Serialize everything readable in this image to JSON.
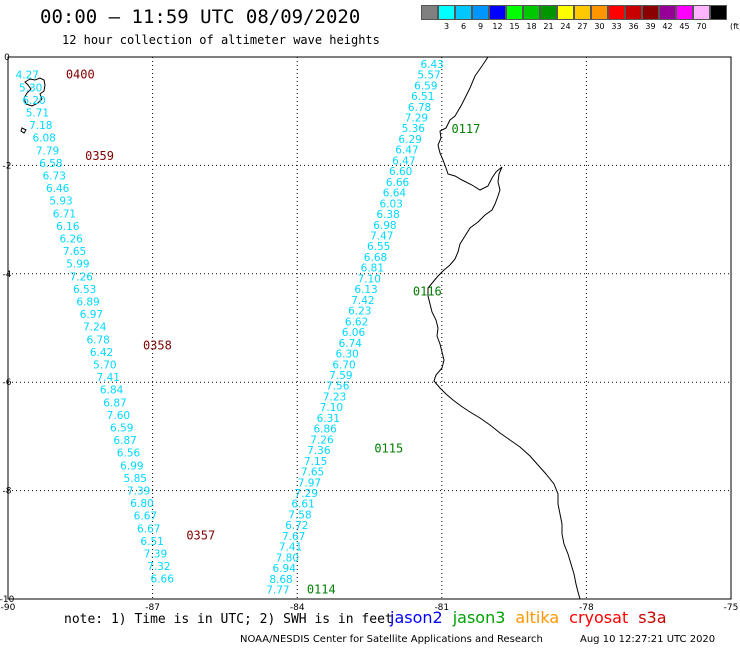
{
  "header": {
    "title": "00:00 – 11:59 UTC 08/09/2020",
    "subtitle": "12 hour collection of altimeter wave heights"
  },
  "legend": {
    "units": "(ft)",
    "items": [
      {
        "label": "",
        "color": "#808080"
      },
      {
        "label": "3",
        "color": "#00ffff"
      },
      {
        "label": "6",
        "color": "#00c8ff"
      },
      {
        "label": "9",
        "color": "#0096ff"
      },
      {
        "label": "12",
        "color": "#0000ff"
      },
      {
        "label": "15",
        "color": "#00ff00"
      },
      {
        "label": "18",
        "color": "#00c800"
      },
      {
        "label": "21",
        "color": "#009600"
      },
      {
        "label": "24",
        "color": "#ffff00"
      },
      {
        "label": "27",
        "color": "#ffc800"
      },
      {
        "label": "30",
        "color": "#ff9600"
      },
      {
        "label": "33",
        "color": "#ff0000"
      },
      {
        "label": "36",
        "color": "#c80000"
      },
      {
        "label": "39",
        "color": "#8b0000"
      },
      {
        "label": "42",
        "color": "#960096"
      },
      {
        "label": "45",
        "color": "#ff00ff"
      },
      {
        "label": "70",
        "color": "#ffb4ff"
      },
      {
        "label": "",
        "color": "#000000"
      }
    ]
  },
  "axes": {
    "x_ticks": [
      {
        "lon": -90,
        "label": "-90"
      },
      {
        "lon": -87,
        "label": "-87"
      },
      {
        "lon": -84,
        "label": "-84"
      },
      {
        "lon": -81,
        "label": "-81"
      },
      {
        "lon": -78,
        "label": "-78"
      },
      {
        "lon": -75,
        "label": "-75"
      }
    ],
    "y_ticks": [
      {
        "lat": 0,
        "label": "0"
      },
      {
        "lat": -2,
        "label": "-2"
      },
      {
        "lat": -4,
        "label": "-4"
      },
      {
        "lat": -6,
        "label": "-6"
      },
      {
        "lat": -8,
        "label": "-8"
      },
      {
        "lat": -10,
        "label": "-10"
      }
    ],
    "lon_range": [
      -90,
      -75
    ],
    "lat_range": [
      -10,
      0
    ]
  },
  "tracks": [
    {
      "satellite": "cryosat",
      "color": "#00d8ff",
      "start": {
        "lon": -89.6,
        "lat": -0.4
      },
      "end": {
        "lon": -86.8,
        "lat": -9.7
      },
      "values": [
        "4.27",
        "5.30",
        "6.20",
        "5.71",
        "7.18",
        "6.08",
        "7.79",
        "6.58",
        "6.73",
        "6.46",
        "5.93",
        "6.71",
        "6.16",
        "6.26",
        "7.65",
        "5.99",
        "7.26",
        "6.53",
        "6.89",
        "6.97",
        "7.24",
        "6.78",
        "6.42",
        "5.70",
        "7.41",
        "6.84",
        "6.87",
        "7.60",
        "6.59",
        "6.87",
        "6.56",
        "6.99",
        "5.85",
        "7.39",
        "6.80",
        "6.67",
        "6.67",
        "6.51",
        "7.39",
        "7.32",
        "6.66"
      ],
      "time_labels": [
        {
          "label": "0400",
          "lon": -88.8,
          "lat": -0.4
        },
        {
          "label": "0359",
          "lon": -88.4,
          "lat": -1.9
        },
        {
          "label": "0358",
          "lon": -87.2,
          "lat": -5.4
        },
        {
          "label": "0357",
          "lon": -86.3,
          "lat": -8.9
        }
      ]
    },
    {
      "satellite": "jason3",
      "color": "#00d8ff",
      "start": {
        "lon": -81.2,
        "lat": -0.2
      },
      "end": {
        "lon": -84.4,
        "lat": -9.9
      },
      "values": [
        "6.43",
        "5.57",
        "6.59",
        "6.51",
        "6.78",
        "7.29",
        "5.36",
        "6.29",
        "6.47",
        "6.47",
        "6.60",
        "6.66",
        "6.64",
        "6.03",
        "6.38",
        "6.98",
        "7.47",
        "6.55",
        "6.68",
        "6.81",
        "7.10",
        "6.13",
        "7.42",
        "6.23",
        "6.62",
        "6.06",
        "6.74",
        "6.30",
        "6.70",
        "7.59",
        "7.56",
        "7.23",
        "7.10",
        "6.31",
        "6.86",
        "7.26",
        "7.36",
        "7.15",
        "7.65",
        "7.97",
        "7.29",
        "6.61",
        "7.58",
        "6.72",
        "7.67",
        "7.41",
        "7.80",
        "6.94",
        "8.68",
        "7.77"
      ],
      "time_labels": [
        {
          "label": "0117",
          "lon": -80.8,
          "lat": -1.4
        },
        {
          "label": "0116",
          "lon": -81.6,
          "lat": -4.4
        },
        {
          "label": "0115",
          "lon": -82.4,
          "lat": -7.3
        },
        {
          "label": "0114",
          "lon": -83.8,
          "lat": -9.9
        }
      ]
    }
  ],
  "footer": {
    "note": "note: 1) Time is in UTC; 2) SWH is in feet",
    "satellites": [
      {
        "name": "jason2",
        "color": "#0000ff"
      },
      {
        "name": "jason3",
        "color": "#00a000"
      },
      {
        "name": "altika",
        "color": "#ff9600"
      },
      {
        "name": "cryosat",
        "color": "#ff0000"
      },
      {
        "name": "s3a",
        "color": "#c80000"
      }
    ],
    "credit": "NOAA/NESDIS Center for Satellite Applications and Research",
    "timestamp": "Aug 10 12:27:21 UTC 2020"
  },
  "colors": {
    "time_label_cryosat": "#800000",
    "time_label_jason3": "#008000",
    "coastline": "#000000",
    "grid": "#000000"
  }
}
